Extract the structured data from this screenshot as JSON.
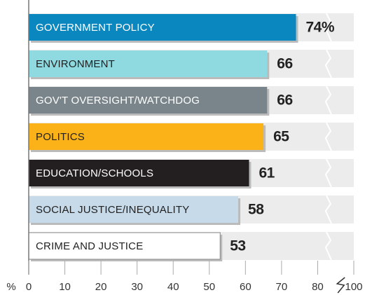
{
  "chart_data": {
    "type": "bar",
    "orientation": "horizontal",
    "categories": [
      "GOVERNMENT POLICY",
      "ENVIRONMENT",
      "GOV'T OVERSIGHT/WATCHDOG",
      "POLITICS",
      "EDUCATION/SCHOOLS",
      "SOCIAL JUSTICE/INEQUALITY",
      "CRIME AND JUSTICE"
    ],
    "values": [
      74,
      66,
      66,
      65,
      61,
      58,
      53
    ],
    "value_labels": [
      "74%",
      "66",
      "66",
      "65",
      "61",
      "58",
      "53"
    ],
    "colors": [
      "#0b87c0",
      "#8fd9e1",
      "#7a858b",
      "#fbb218",
      "#231f20",
      "#c6dae9",
      "#ffffff"
    ],
    "x_axis_label": "%",
    "xlim": [
      0,
      100
    ],
    "xticks": [
      0,
      10,
      20,
      30,
      40,
      50,
      60,
      70,
      80,
      100
    ],
    "axis_break": true
  }
}
